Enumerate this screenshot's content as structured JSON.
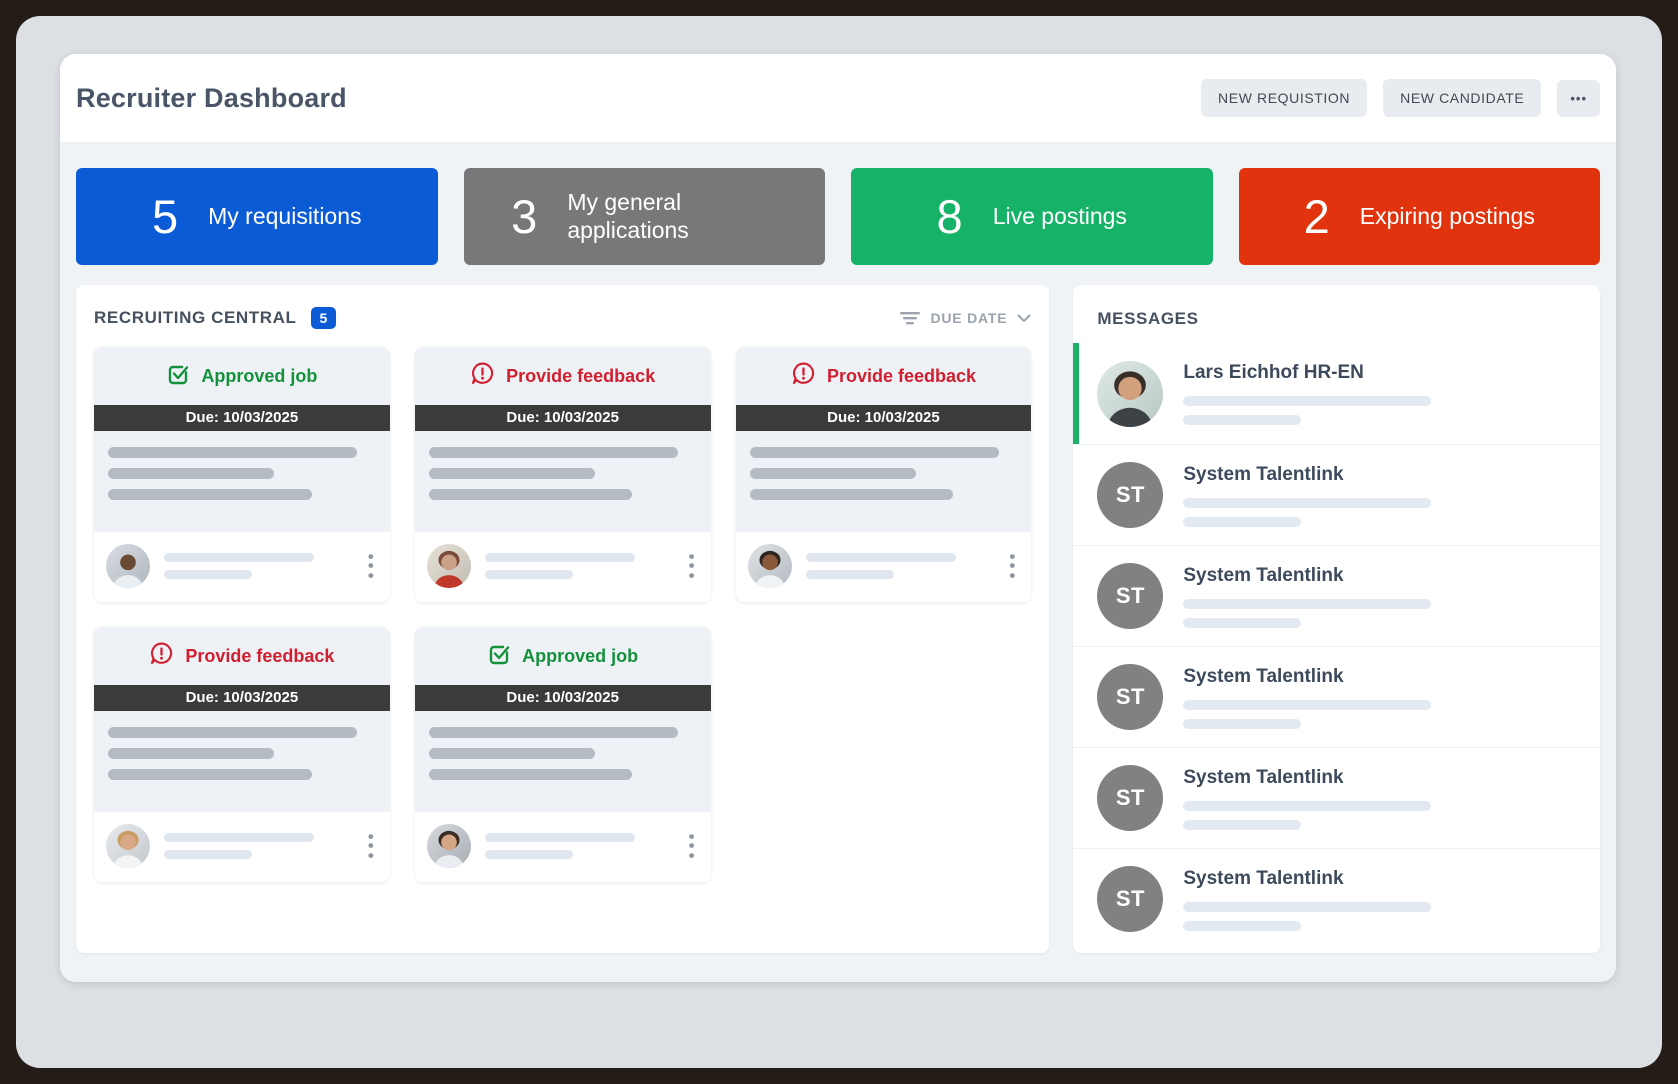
{
  "header": {
    "title": "Recruiter Dashboard",
    "new_requisition_label": "NEW REQUISTION",
    "new_candidate_label": "NEW CANDIDATE",
    "more_label": "•••"
  },
  "stats": [
    {
      "value": "5",
      "label": "My requisitions",
      "color": "#0b5bd7"
    },
    {
      "value": "3",
      "label": "My general applications",
      "color": "#77787a"
    },
    {
      "value": "8",
      "label": "Live postings",
      "color": "#16b268"
    },
    {
      "value": "2",
      "label": "Expiring postings",
      "color": "#e1340e"
    }
  ],
  "recruiting": {
    "title": "RECRUITING CENTRAL",
    "badge": "5",
    "sort_label": "DUE DATE",
    "status_colors": {
      "approved": "#13923b",
      "feedback": "#d11f2f"
    },
    "cards": [
      {
        "type": "approved",
        "status": "Approved job",
        "due": "Due: 10/03/2025",
        "avatar": "man-dark"
      },
      {
        "type": "feedback",
        "status": "Provide feedback",
        "due": "Due: 10/03/2025",
        "avatar": "woman-red"
      },
      {
        "type": "feedback",
        "status": "Provide feedback",
        "due": "Due: 10/03/2025",
        "avatar": "woman-curly"
      },
      {
        "type": "feedback",
        "status": "Provide feedback",
        "due": "Due: 10/03/2025",
        "avatar": "man-blond"
      },
      {
        "type": "approved",
        "status": "Approved job",
        "due": "Due: 10/03/2025",
        "avatar": "woman-brunette"
      }
    ]
  },
  "messages": {
    "title": "MESSAGES",
    "items": [
      {
        "name": "Lars Eichhof HR-EN",
        "avatar_type": "photo",
        "avatar": "man-beard",
        "highlight": true
      },
      {
        "name": "System Talentlink",
        "avatar_type": "initials",
        "initials": "ST",
        "highlight": false
      },
      {
        "name": "System Talentlink",
        "avatar_type": "initials",
        "initials": "ST",
        "highlight": false
      },
      {
        "name": "System Talentlink",
        "avatar_type": "initials",
        "initials": "ST",
        "highlight": false
      },
      {
        "name": "System Talentlink",
        "avatar_type": "initials",
        "initials": "ST",
        "highlight": false
      },
      {
        "name": "System Talentlink",
        "avatar_type": "initials",
        "initials": "ST",
        "highlight": false
      }
    ]
  }
}
